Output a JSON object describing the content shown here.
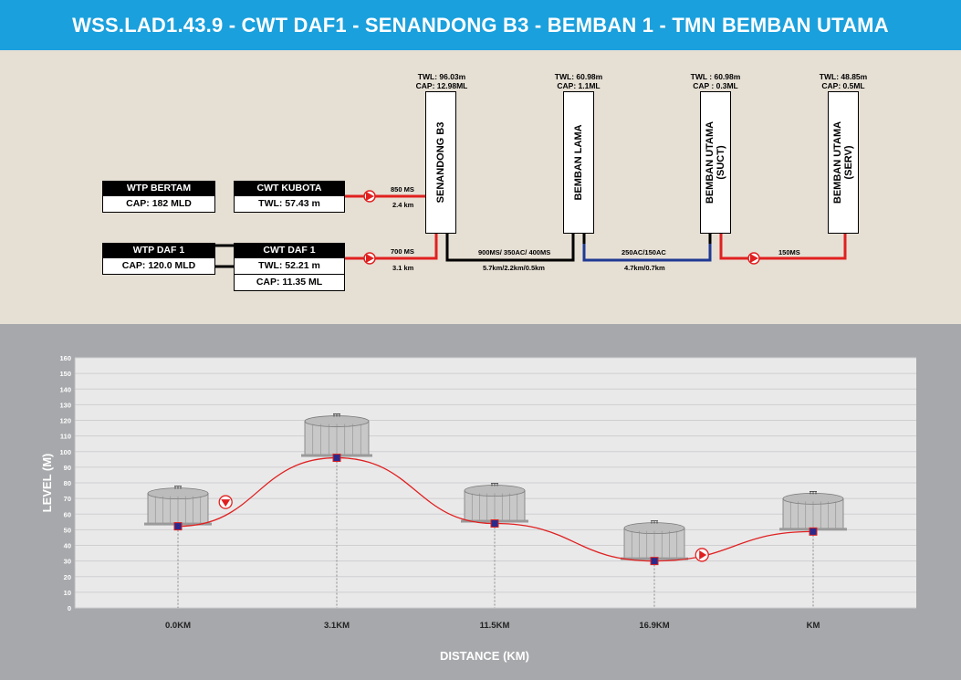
{
  "title": "WSS.LAD1.43.9 - CWT DAF1 - SENANDONG B3 - BEMBAN 1 - TMN BEMBAN UTAMA",
  "sources": [
    {
      "name": "WTP BERTAM",
      "lines": [
        "CAP: 182 MLD"
      ]
    },
    {
      "name": "WTP DAF 1",
      "lines": [
        "CAP: 120.0 MLD"
      ]
    }
  ],
  "cwts": [
    {
      "name": "CWT KUBOTA",
      "lines": [
        "TWL: 57.43 m"
      ]
    },
    {
      "name": "CWT DAF 1",
      "lines": [
        "TWL: 52.21 m",
        "CAP: 11.35 ML"
      ]
    }
  ],
  "tanks": [
    {
      "name": "SENANDONG B3",
      "name2": "",
      "twl": "TWL: 96.03m",
      "cap": "CAP: 12.98ML"
    },
    {
      "name": "BEMBAN LAMA",
      "name2": "",
      "twl": "TWL: 60.98m",
      "cap": "CAP: 1.1ML"
    },
    {
      "name": "BEMBAN UTAMA",
      "name2": "(SUCT)",
      "twl": "TWL : 60.98m",
      "cap": "CAP : 0.3ML"
    },
    {
      "name": "BEMBAN UTAMA",
      "name2": "(SERV)",
      "twl": "TWL: 48.85m",
      "cap": "CAP: 0.5ML"
    }
  ],
  "pipes": [
    {
      "size": "850 MS",
      "length": "2.4 km"
    },
    {
      "size": "700 MS",
      "length": "3.1 km"
    },
    {
      "size": "900MS/ 350AC/ 400MS",
      "length": "5.7km/2.2km/0.5km"
    },
    {
      "size": "250AC/150AC",
      "length": "4.7km/0.7km"
    },
    {
      "size": "150MS",
      "length": ""
    }
  ],
  "colors": {
    "header_bg": "#1aa0dd",
    "pump_line": "#e02020",
    "gravity_line": "#000000",
    "ac_line": "#1f3a93",
    "profile_marker": "#2a2a8c"
  },
  "chart_data": {
    "type": "line",
    "xlabel": "DISTANCE (KM)",
    "ylabel": "LEVEL (M)",
    "ylim": [
      0,
      160
    ],
    "yticks": [
      0,
      10,
      20,
      30,
      40,
      50,
      60,
      70,
      80,
      90,
      100,
      110,
      120,
      130,
      140,
      150,
      160
    ],
    "categories": [
      "0.0KM",
      "3.1KM",
      "11.5KM",
      "16.9KM",
      "KM"
    ],
    "values": [
      52.21,
      96.03,
      54,
      30,
      48.85
    ],
    "pumps_after": [
      0,
      3
    ],
    "grid": true
  }
}
